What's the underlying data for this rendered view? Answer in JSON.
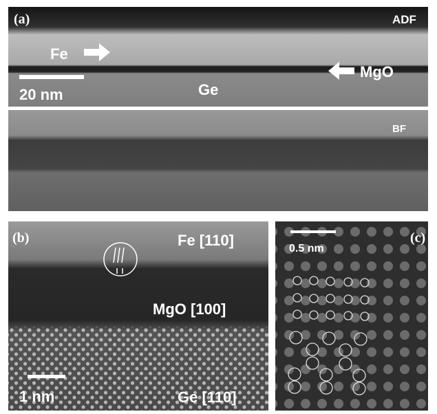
{
  "panel_a": {
    "label": "(a)",
    "top_mode": "ADF",
    "bottom_mode": "BF",
    "fe_label": "Fe",
    "mgo_label": "MgO",
    "ge_label": "Ge",
    "scale_bar": "20 nm"
  },
  "panel_b": {
    "label": "(b)",
    "fe_label": "Fe [110]",
    "mgo_label": "MgO [100]",
    "ge_label": "Ge [110]",
    "scale_bar": "1 nm"
  },
  "panel_c": {
    "label": "(c)",
    "scale_bar": "0.5 nm"
  }
}
